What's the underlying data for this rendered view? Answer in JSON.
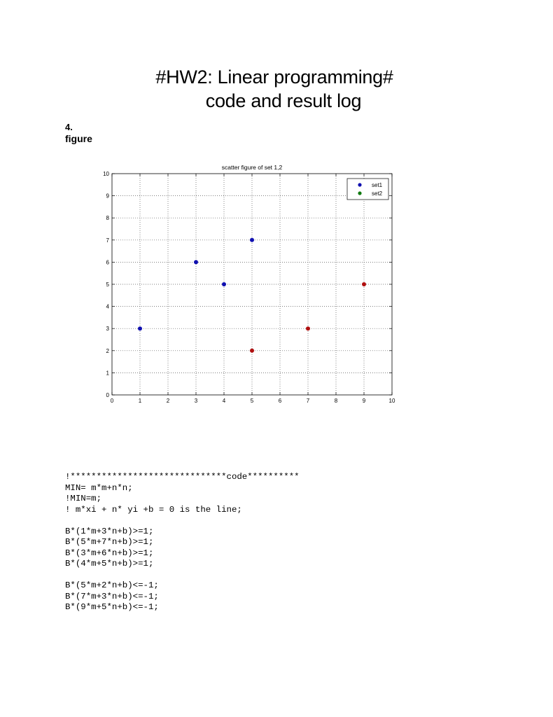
{
  "header": {
    "title_line1": "#HW2: Linear programming#",
    "title_line2": "code and result log"
  },
  "section": {
    "number": "4.",
    "label": "figure"
  },
  "chart_data": {
    "type": "scatter",
    "title": "scatter figure of set 1,2",
    "xlabel": "",
    "ylabel": "",
    "xlim": [
      0,
      10
    ],
    "ylim": [
      0,
      10
    ],
    "xticks": [
      "0",
      "1",
      "2",
      "3",
      "4",
      "5",
      "6",
      "7",
      "8",
      "9",
      "10"
    ],
    "yticks": [
      "0",
      "1",
      "2",
      "3",
      "4",
      "5",
      "6",
      "7",
      "8",
      "9",
      "10"
    ],
    "grid": true,
    "legend_position": "top-right",
    "series": [
      {
        "name": "set1",
        "color": "#1010b0",
        "points": [
          [
            1,
            3
          ],
          [
            5,
            7
          ],
          [
            3,
            6
          ],
          [
            4,
            5
          ]
        ]
      },
      {
        "name": "set2",
        "color": "#b01010",
        "legend_color": "#107a10",
        "points": [
          [
            5,
            2
          ],
          [
            7,
            3
          ],
          [
            9,
            5
          ]
        ]
      }
    ]
  },
  "code": {
    "lines": [
      "!******************************code**********",
      "MIN= m*m+n*n;",
      "!MIN=m;",
      "! m*xi + n* yi +b = 0 is the line;",
      "",
      "B*(1*m+3*n+b)>=1;",
      "B*(5*m+7*n+b)>=1;",
      "B*(3*m+6*n+b)>=1;",
      "B*(4*m+5*n+b)>=1;",
      "",
      "B*(5*m+2*n+b)<=-1;",
      "B*(7*m+3*n+b)<=-1;",
      "B*(9*m+5*n+b)<=-1;"
    ]
  }
}
